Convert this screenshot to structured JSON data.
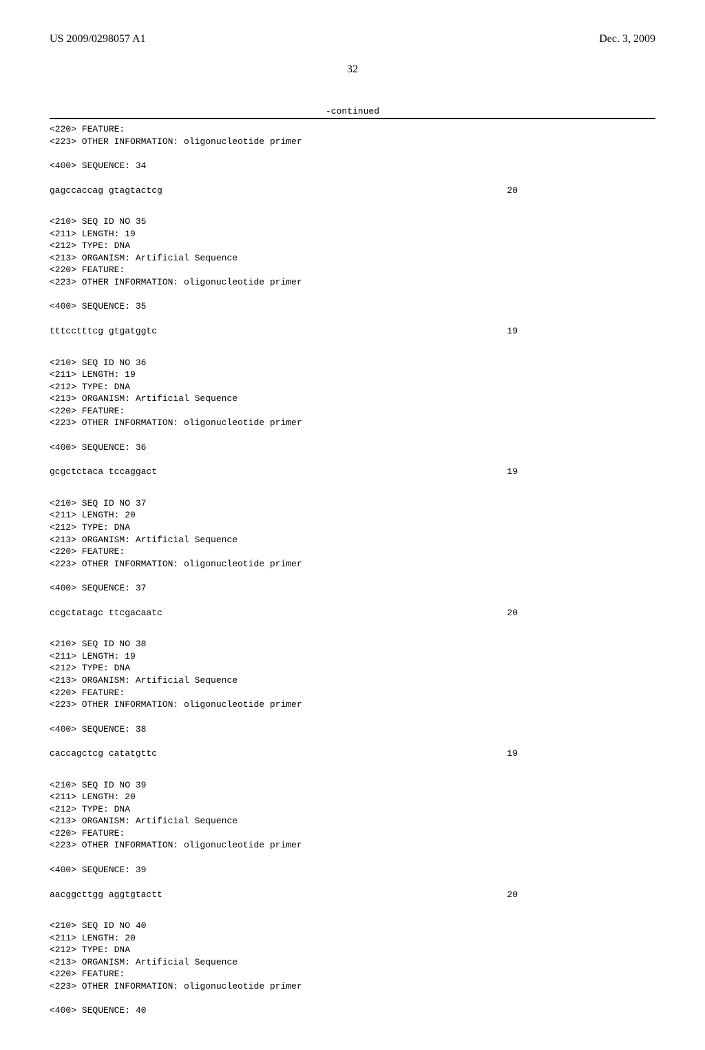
{
  "header": {
    "left": "US 2009/0298057 A1",
    "right": "Dec. 3, 2009"
  },
  "page_number": "32",
  "continued_label": "-continued",
  "blocks": [
    {
      "meta": [
        "<220> FEATURE:",
        "<223> OTHER INFORMATION: oligonucleotide primer"
      ],
      "seq_label": "<400> SEQUENCE: 34",
      "sequence": "gagccaccag gtagtactcg",
      "length": "20"
    },
    {
      "meta": [
        "<210> SEQ ID NO 35",
        "<211> LENGTH: 19",
        "<212> TYPE: DNA",
        "<213> ORGANISM: Artificial Sequence",
        "<220> FEATURE:",
        "<223> OTHER INFORMATION: oligonucleotide primer"
      ],
      "seq_label": "<400> SEQUENCE: 35",
      "sequence": "tttcctttcg gtgatggtc",
      "length": "19"
    },
    {
      "meta": [
        "<210> SEQ ID NO 36",
        "<211> LENGTH: 19",
        "<212> TYPE: DNA",
        "<213> ORGANISM: Artificial Sequence",
        "<220> FEATURE:",
        "<223> OTHER INFORMATION: oligonucleotide primer"
      ],
      "seq_label": "<400> SEQUENCE: 36",
      "sequence": "gcgctctaca tccaggact",
      "length": "19"
    },
    {
      "meta": [
        "<210> SEQ ID NO 37",
        "<211> LENGTH: 20",
        "<212> TYPE: DNA",
        "<213> ORGANISM: Artificial Sequence",
        "<220> FEATURE:",
        "<223> OTHER INFORMATION: oligonucleotide primer"
      ],
      "seq_label": "<400> SEQUENCE: 37",
      "sequence": "ccgctatagc ttcgacaatc",
      "length": "20"
    },
    {
      "meta": [
        "<210> SEQ ID NO 38",
        "<211> LENGTH: 19",
        "<212> TYPE: DNA",
        "<213> ORGANISM: Artificial Sequence",
        "<220> FEATURE:",
        "<223> OTHER INFORMATION: oligonucleotide primer"
      ],
      "seq_label": "<400> SEQUENCE: 38",
      "sequence": "caccagctcg catatgttc",
      "length": "19"
    },
    {
      "meta": [
        "<210> SEQ ID NO 39",
        "<211> LENGTH: 20",
        "<212> TYPE: DNA",
        "<213> ORGANISM: Artificial Sequence",
        "<220> FEATURE:",
        "<223> OTHER INFORMATION: oligonucleotide primer"
      ],
      "seq_label": "<400> SEQUENCE: 39",
      "sequence": "aacggcttgg aggtgtactt",
      "length": "20"
    },
    {
      "meta": [
        "<210> SEQ ID NO 40",
        "<211> LENGTH: 20",
        "<212> TYPE: DNA",
        "<213> ORGANISM: Artificial Sequence",
        "<220> FEATURE:",
        "<223> OTHER INFORMATION: oligonucleotide primer"
      ],
      "seq_label": "<400> SEQUENCE: 40",
      "sequence": "",
      "length": ""
    }
  ]
}
